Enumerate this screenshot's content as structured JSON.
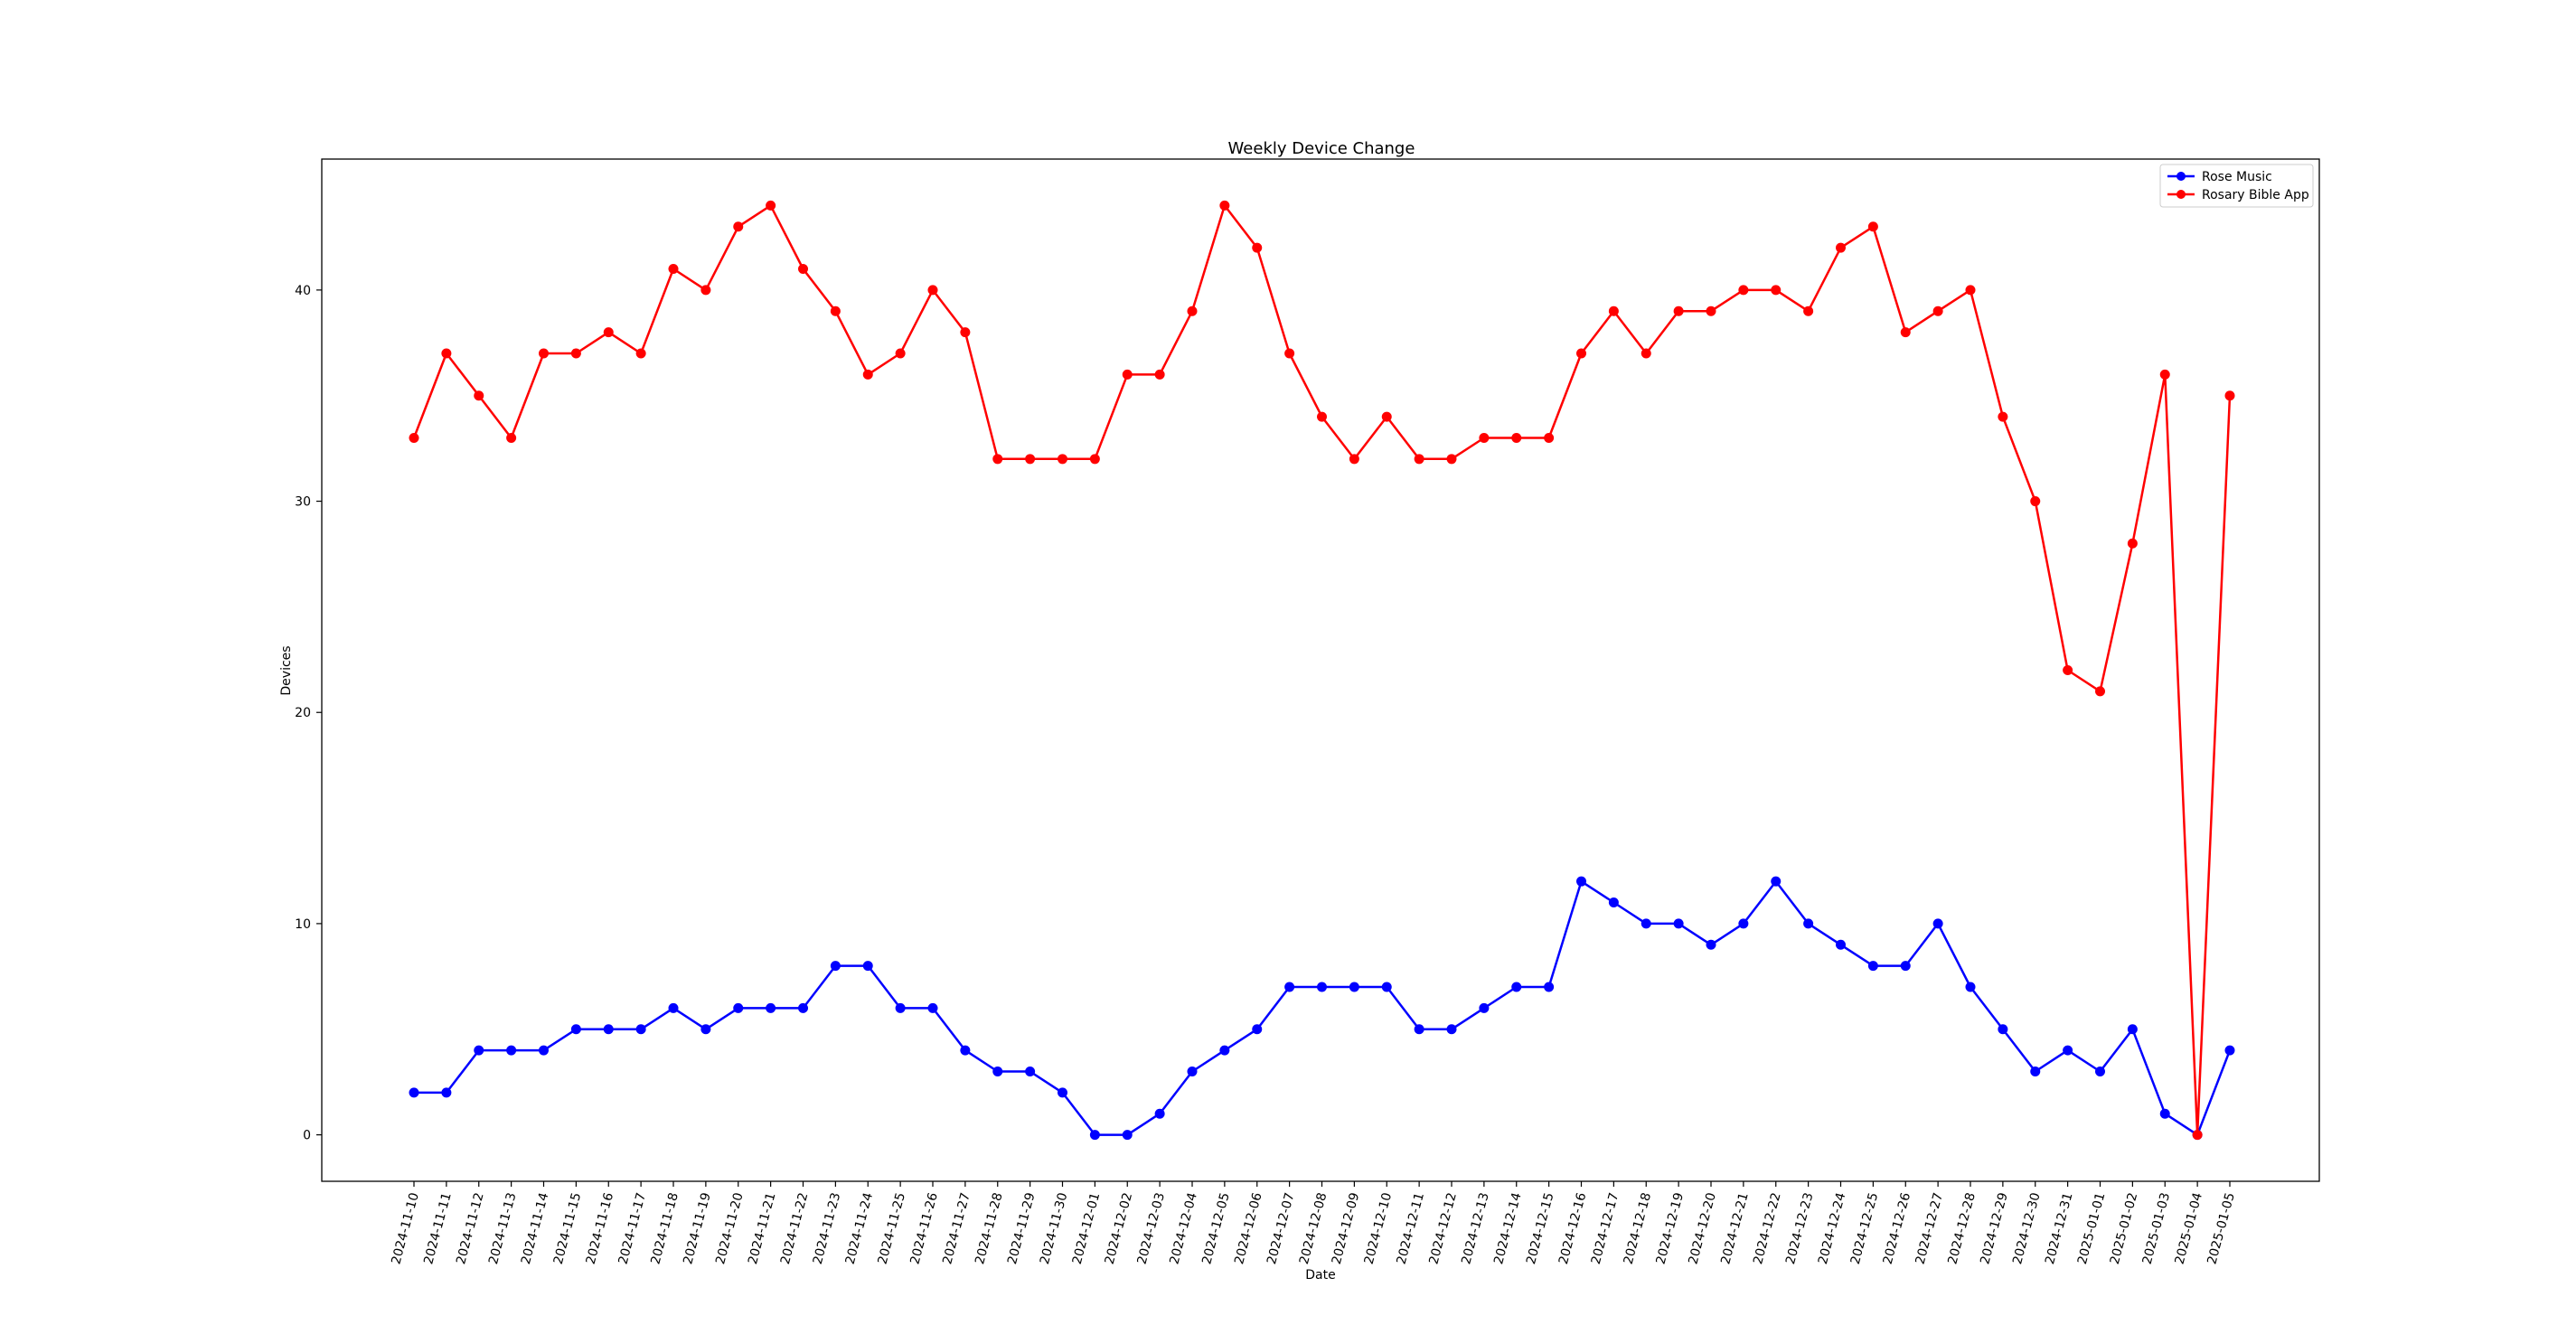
{
  "chart_data": {
    "type": "line",
    "title": "Weekly Device Change",
    "xlabel": "Date",
    "ylabel": "Devices",
    "ylim": [
      -2.2,
      46.2
    ],
    "yticks": [
      0,
      10,
      20,
      30,
      40
    ],
    "grid": false,
    "legend_position": "top-right",
    "categories": [
      "2024-11-10",
      "2024-11-11",
      "2024-11-12",
      "2024-11-13",
      "2024-11-14",
      "2024-11-15",
      "2024-11-16",
      "2024-11-17",
      "2024-11-18",
      "2024-11-19",
      "2024-11-20",
      "2024-11-21",
      "2024-11-22",
      "2024-11-23",
      "2024-11-24",
      "2024-11-25",
      "2024-11-26",
      "2024-11-27",
      "2024-11-28",
      "2024-11-29",
      "2024-11-30",
      "2024-12-01",
      "2024-12-02",
      "2024-12-03",
      "2024-12-04",
      "2024-12-05",
      "2024-12-06",
      "2024-12-07",
      "2024-12-08",
      "2024-12-09",
      "2024-12-10",
      "2024-12-11",
      "2024-12-12",
      "2024-12-13",
      "2024-12-14",
      "2024-12-15",
      "2024-12-16",
      "2024-12-17",
      "2024-12-18",
      "2024-12-19",
      "2024-12-20",
      "2024-12-21",
      "2024-12-22",
      "2024-12-23",
      "2024-12-24",
      "2024-12-25",
      "2024-12-26",
      "2024-12-27",
      "2024-12-28",
      "2024-12-29",
      "2024-12-30",
      "2024-12-31",
      "2025-01-01",
      "2025-01-02",
      "2025-01-03",
      "2025-01-04",
      "2025-01-05"
    ],
    "series": [
      {
        "name": "Rose Music",
        "color": "#0000ff",
        "values": [
          2,
          2,
          4,
          4,
          4,
          5,
          5,
          5,
          6,
          5,
          6,
          6,
          6,
          8,
          8,
          6,
          6,
          4,
          3,
          3,
          2,
          0,
          0,
          1,
          3,
          4,
          5,
          7,
          7,
          7,
          7,
          5,
          5,
          6,
          7,
          7,
          12,
          11,
          10,
          10,
          9,
          10,
          12,
          10,
          9,
          8,
          8,
          10,
          7,
          5,
          3,
          4,
          3,
          5,
          1,
          0,
          4
        ]
      },
      {
        "name": "Rosary Bible App",
        "color": "#ff0000",
        "values": [
          33,
          37,
          35,
          33,
          37,
          37,
          38,
          37,
          41,
          40,
          43,
          44,
          41,
          39,
          36,
          37,
          40,
          38,
          32,
          32,
          32,
          32,
          36,
          36,
          39,
          44,
          42,
          37,
          34,
          32,
          34,
          32,
          32,
          33,
          33,
          33,
          37,
          39,
          37,
          39,
          39,
          40,
          40,
          39,
          42,
          43,
          38,
          39,
          40,
          34,
          30,
          22,
          21,
          28,
          36,
          0,
          35
        ]
      }
    ]
  }
}
